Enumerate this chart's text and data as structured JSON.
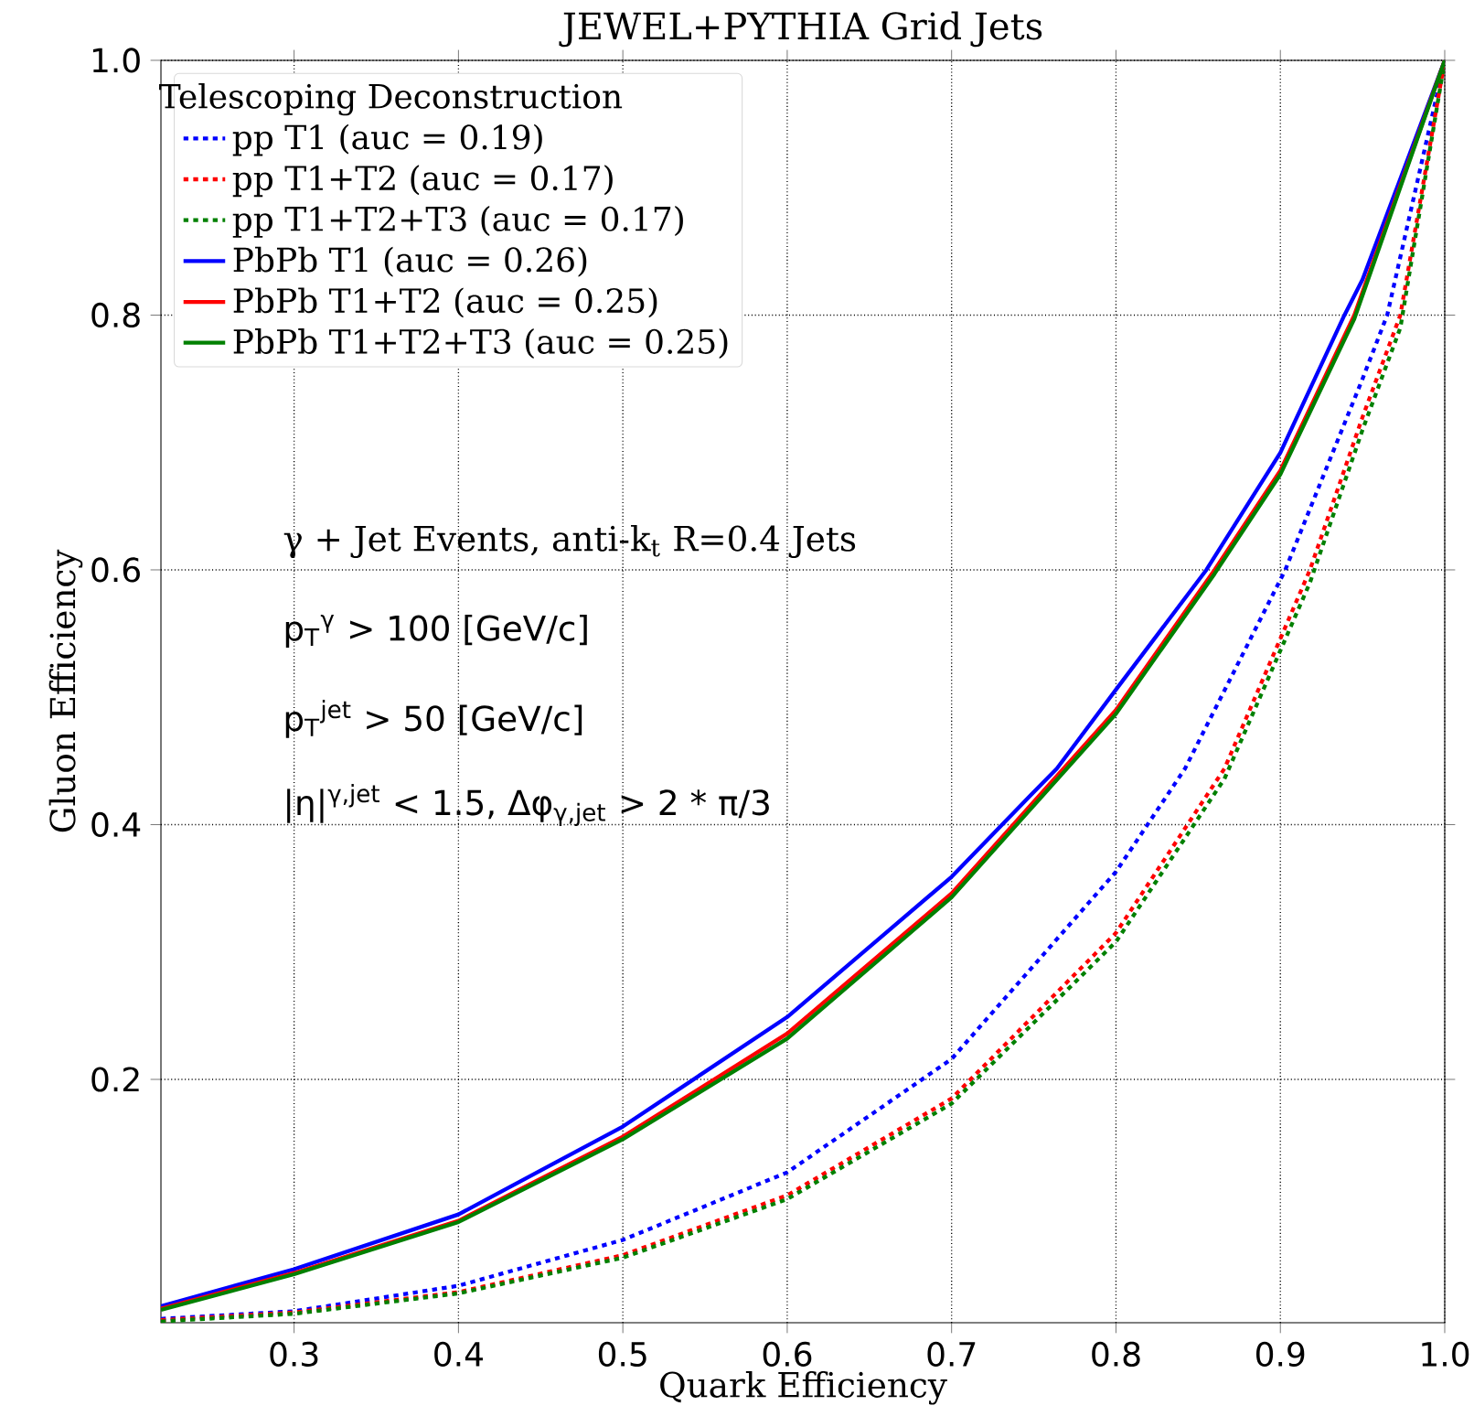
{
  "chart_data": {
    "type": "line",
    "title": "JEWEL+PYTHIA Grid Jets",
    "xlabel": "Quark Efficiency",
    "ylabel": "Gluon Efficiency",
    "legend_title": "Telescoping Deconstruction",
    "xlim": [
      0.219,
      1.0
    ],
    "ylim": [
      0.009,
      1.0
    ],
    "xticks": [
      0.3,
      0.4,
      0.5,
      0.6,
      0.7,
      0.8,
      0.9,
      {
        "value": 1,
        "label": "1.0"
      }
    ],
    "yticks": [
      0.2,
      0.4,
      0.6,
      0.8,
      {
        "value": 1,
        "label": "1.0"
      }
    ],
    "grid": true,
    "legend": "top left",
    "series": [
      {
        "name": "pp T1 (auc = 0.19)",
        "color": "#0000ff",
        "line_style": "dotted",
        "x": [
          0.219,
          0.3,
          0.4,
          0.5,
          0.6,
          0.7,
          0.8,
          0.842,
          0.903,
          0.95,
          0.965,
          1.0
        ],
        "values": [
          0.012,
          0.018,
          0.038,
          0.074,
          0.127,
          0.216,
          0.363,
          0.444,
          0.6,
          0.75,
          0.8,
          1.0
        ]
      },
      {
        "name": "pp T1+T2 (auc = 0.17)",
        "color": "#ff0000",
        "line_style": "dotted",
        "x": [
          0.219,
          0.3,
          0.4,
          0.5,
          0.6,
          0.7,
          0.8,
          0.866,
          0.918,
          0.95,
          0.973,
          1.0
        ],
        "values": [
          0.011,
          0.017,
          0.033,
          0.062,
          0.109,
          0.185,
          0.315,
          0.444,
          0.6,
          0.72,
          0.8,
          1.0
        ]
      },
      {
        "name": "pp T1+T2+T3 (auc = 0.17)",
        "color": "#008000",
        "line_style": "dotted",
        "x": [
          0.219,
          0.3,
          0.4,
          0.5,
          0.6,
          0.7,
          0.8,
          0.866,
          0.918,
          0.95,
          0.973,
          1.0
        ],
        "values": [
          0.01,
          0.016,
          0.032,
          0.06,
          0.106,
          0.181,
          0.308,
          0.436,
          0.59,
          0.71,
          0.79,
          1.0
        ]
      },
      {
        "name": "PbPb T1 (auc = 0.26)",
        "color": "#0000ff",
        "line_style": "solid",
        "x": [
          0.219,
          0.3,
          0.4,
          0.5,
          0.6,
          0.7,
          0.748,
          0.764,
          0.8,
          0.855,
          0.9,
          0.939,
          0.95,
          1.0
        ],
        "values": [
          0.022,
          0.051,
          0.094,
          0.163,
          0.249,
          0.359,
          0.423,
          0.444,
          0.506,
          0.6,
          0.692,
          0.8,
          0.828,
          1.0
        ]
      },
      {
        "name": "PbPb T1+T2 (auc = 0.25)",
        "color": "#ff0000",
        "line_style": "solid",
        "x": [
          0.219,
          0.3,
          0.4,
          0.5,
          0.6,
          0.7,
          0.8,
          0.86,
          0.9,
          0.945,
          1.0
        ],
        "values": [
          0.02,
          0.048,
          0.089,
          0.155,
          0.236,
          0.346,
          0.49,
          0.6,
          0.678,
          0.8,
          1.0
        ]
      },
      {
        "name": "PbPb T1+T2+T3 (auc = 0.25)",
        "color": "#008000",
        "line_style": "solid",
        "x": [
          0.219,
          0.3,
          0.4,
          0.5,
          0.6,
          0.7,
          0.8,
          0.86,
          0.9,
          0.945,
          1.0
        ],
        "values": [
          0.019,
          0.047,
          0.088,
          0.153,
          0.232,
          0.343,
          0.487,
          0.597,
          0.675,
          0.797,
          1.0
        ]
      }
    ],
    "annotations": [
      "γ + Jet Events, anti-k$_{t}$ R=0.4 Jets",
      "p$_{T}$$^{γ}$ > 100 [GeV/c]",
      "p$_{T}$$^{jet}$ > 50 [GeV/c]",
      "|η|$^{γ,jet}$ < 1.5, Δφ$_{γ,jet}$ > 2 * π/3"
    ]
  }
}
